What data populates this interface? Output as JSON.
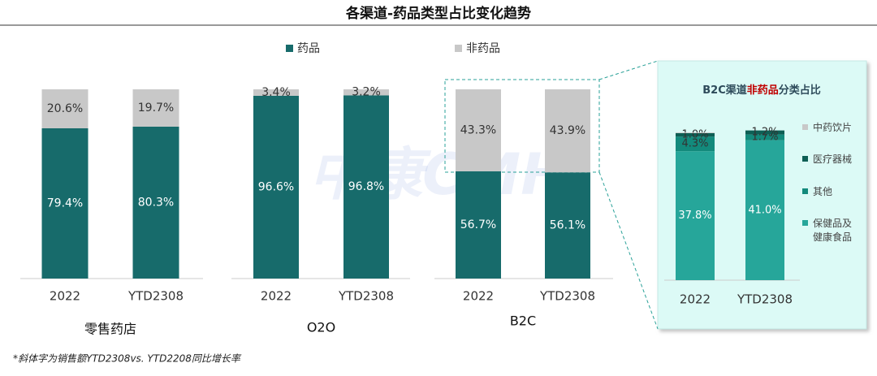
{
  "title": "各渠道-药品类型占比变化趋势",
  "watermark": "中康CMH",
  "footnote": "*斜体字为销售额YTD2308vs. YTD2208同比增长率",
  "chart_data": [
    {
      "type": "bar",
      "stacked": true,
      "title": "零售药店",
      "categories": [
        "2022",
        "YTD2308"
      ],
      "ylim": [
        0,
        100
      ],
      "series": [
        {
          "name": "药品",
          "color": "#176b6b",
          "values": [
            79.4,
            80.3
          ],
          "value_labels": [
            "79.4%",
            "80.3%"
          ]
        },
        {
          "name": "非药品",
          "color": "#c8c8c8",
          "values": [
            20.6,
            19.7
          ],
          "value_labels": [
            "20.6%",
            "19.7%"
          ]
        }
      ]
    },
    {
      "type": "bar",
      "stacked": true,
      "title": "O2O",
      "categories": [
        "2022",
        "YTD2308"
      ],
      "ylim": [
        0,
        100
      ],
      "series": [
        {
          "color": "#176b6b",
          "values": [
            96.6,
            96.8
          ],
          "value_labels": [
            "96.6%",
            "96.8%"
          ]
        },
        {
          "color": "#c8c8c8",
          "values": [
            3.4,
            3.2
          ],
          "value_labels": [
            "3.4%",
            "3.2%"
          ]
        }
      ]
    },
    {
      "type": "bar",
      "stacked": true,
      "title": "B2C",
      "categories": [
        "2022",
        "YTD2308"
      ],
      "ylim": [
        0,
        100
      ],
      "series": [
        {
          "color": "#176b6b",
          "values": [
            56.7,
            56.1
          ],
          "value_labels": [
            "56.7%",
            "56.1%"
          ]
        },
        {
          "color": "#c8c8c8",
          "values": [
            43.3,
            43.9
          ],
          "value_labels": [
            "43.3%",
            "43.9%"
          ]
        }
      ]
    },
    {
      "type": "bar",
      "stacked": true,
      "title": [
        "B2C渠道",
        "非药品",
        "分类占比"
      ],
      "categories": [
        "2022",
        "YTD2308"
      ],
      "ylim": [
        0,
        45
      ],
      "series": [
        {
          "name": "保健品及健康食品",
          "color": "#26a69a",
          "values": [
            37.8,
            41.0
          ],
          "value_labels": [
            "37.8%",
            "41.0%"
          ]
        },
        {
          "name": "其他",
          "color": "#138a7c",
          "values": [
            4.3,
            1.7
          ],
          "value_labels": [
            "4.3%",
            "1.7%"
          ]
        },
        {
          "name": "医疗器械",
          "color": "#0e5f55",
          "values": [
            1.0,
            1.2
          ],
          "value_labels": [
            "1.0%",
            "1.2%"
          ]
        },
        {
          "name": "中药饮片",
          "color": "#c8c8c8",
          "values": [
            0.2,
            0.0
          ],
          "value_labels": [
            null,
            null
          ]
        }
      ]
    }
  ]
}
